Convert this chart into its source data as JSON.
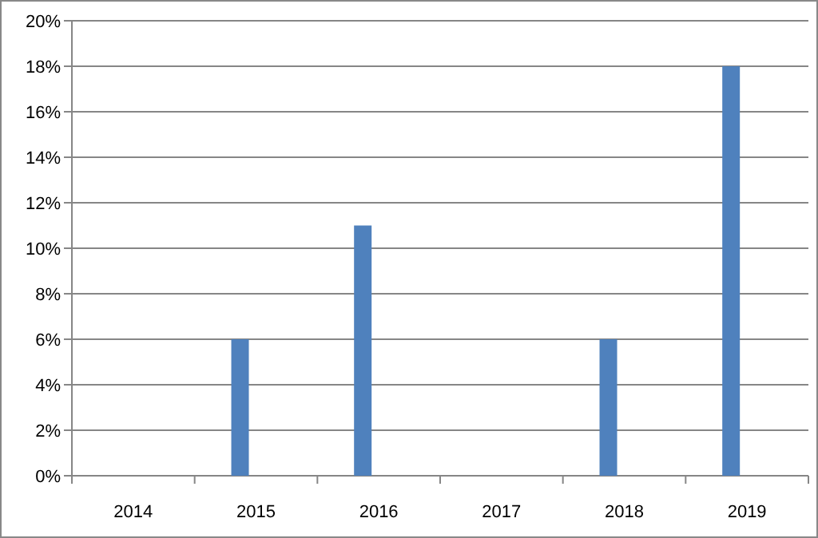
{
  "chart_data": {
    "type": "bar",
    "categories": [
      "2014",
      "2015",
      "2016",
      "2017",
      "2018",
      "2019"
    ],
    "series": [
      {
        "color": "#4f81bd",
        "values": [
          null,
          6,
          11,
          null,
          6,
          18
        ]
      }
    ],
    "ylim": [
      0,
      20
    ],
    "yticks": [
      {
        "value": 0,
        "label": "0%"
      },
      {
        "value": 2,
        "label": "2%"
      },
      {
        "value": 4,
        "label": "4%"
      },
      {
        "value": 6,
        "label": "6%"
      },
      {
        "value": 8,
        "label": "8%"
      },
      {
        "value": 10,
        "label": "10%"
      },
      {
        "value": 12,
        "label": "12%"
      },
      {
        "value": 14,
        "label": "14%"
      },
      {
        "value": 16,
        "label": "16%"
      },
      {
        "value": 18,
        "label": "18%"
      },
      {
        "value": 20,
        "label": "20%"
      }
    ],
    "grid": "y"
  }
}
